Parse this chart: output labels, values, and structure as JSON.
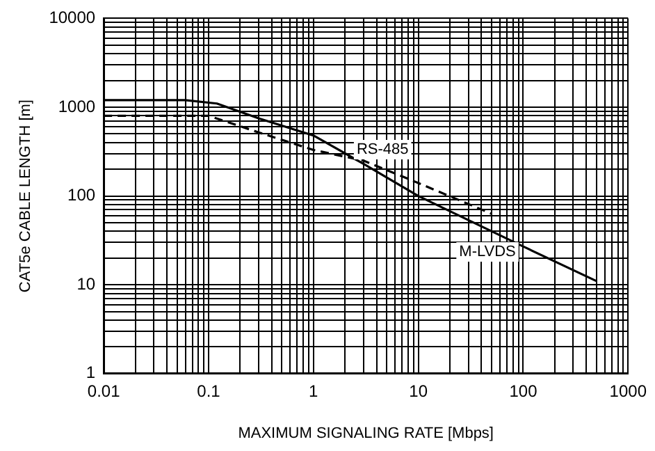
{
  "chart_data": {
    "type": "line",
    "xlabel": "MAXIMUM SIGNALING RATE [Mbps]",
    "ylabel": "CAT5e CABLE LENGTH [m]",
    "log": "xy",
    "grid": true,
    "legend": false,
    "marker": "none",
    "xlim": [
      0.01,
      1000
    ],
    "xticks": [
      0.01,
      0.1,
      1,
      10,
      100,
      1000
    ],
    "ylim": [
      1,
      10000
    ],
    "yticks": [
      1,
      10,
      100,
      1000,
      10000
    ],
    "series": [
      {
        "name": "M-LVDS",
        "color": "#000000",
        "line_style": "solid",
        "x": [
          0.01,
          0.06,
          0.12,
          0.3,
          1,
          3,
          10,
          100,
          500
        ],
        "values": [
          1200,
          1200,
          1100,
          750,
          480,
          230,
          100,
          27,
          11
        ]
      },
      {
        "name": "RS-485",
        "color": "#000000",
        "line_style": "dashed",
        "x": [
          0.01,
          0.1,
          0.3,
          1,
          3,
          10,
          50
        ],
        "values": [
          800,
          800,
          520,
          330,
          250,
          140,
          63
        ]
      }
    ]
  }
}
